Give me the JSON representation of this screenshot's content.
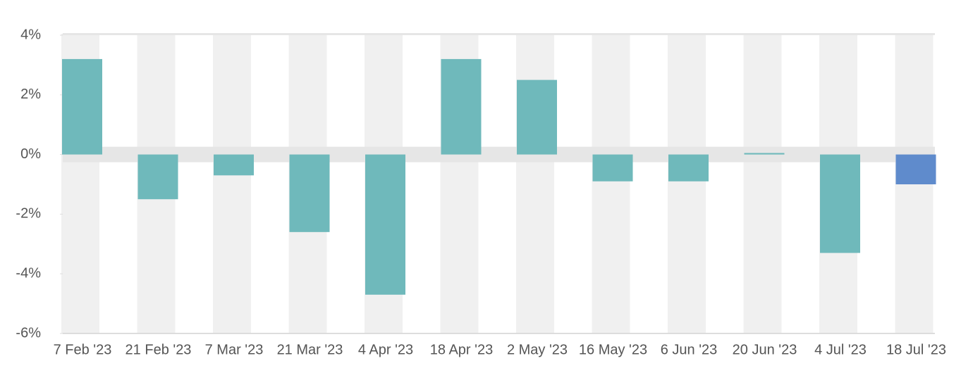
{
  "chart_data": {
    "type": "bar",
    "categories": [
      "7 Feb '23",
      "21 Feb '23",
      "7 Mar '23",
      "21 Mar '23",
      "4 Apr '23",
      "18 Apr '23",
      "2 May '23",
      "16 May '23",
      "6 Jun '23",
      "20 Jun '23",
      "4 Jul '23",
      "18 Jul '23"
    ],
    "values": [
      3.2,
      -1.5,
      -0.7,
      -2.6,
      -4.7,
      3.2,
      2.5,
      -0.9,
      -0.9,
      0.05,
      -3.3,
      -1.0
    ],
    "colors": [
      "#6fb9bb",
      "#6fb9bb",
      "#6fb9bb",
      "#6fb9bb",
      "#6fb9bb",
      "#6fb9bb",
      "#6fb9bb",
      "#6fb9bb",
      "#6fb9bb",
      "#6fb9bb",
      "#6fb9bb",
      "#5f8bcc"
    ],
    "ylim": [
      -6,
      4
    ],
    "yticks": [
      {
        "value": -6,
        "label": "-6%"
      },
      {
        "value": -4,
        "label": "-4%"
      },
      {
        "value": -2,
        "label": "-2%"
      },
      {
        "value": 0,
        "label": "0%"
      },
      {
        "value": 2,
        "label": "2%"
      },
      {
        "value": 4,
        "label": "4%"
      }
    ]
  }
}
